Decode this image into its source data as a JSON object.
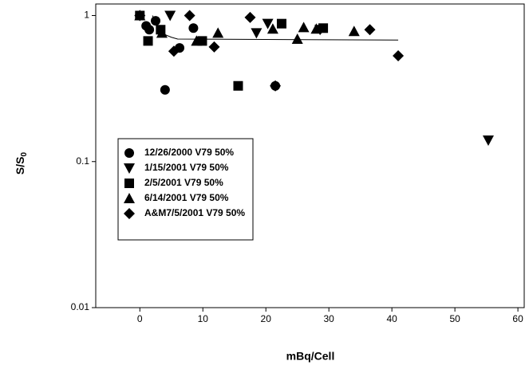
{
  "chart_data": {
    "type": "scatter",
    "x_label": "mBq/Cell",
    "y_label": "S/S",
    "y_label_subscript": "0",
    "xlim": [
      -7,
      61
    ],
    "xticks": [
      0,
      10,
      20,
      30,
      40,
      50,
      60
    ],
    "ylim": [
      0.01,
      1.2
    ],
    "yticks": [
      0.01,
      0.1,
      1
    ],
    "y_scale": "log",
    "grid": false,
    "legend_loc": "center left",
    "series": [
      {
        "name": "12/26/2000 V79 50%",
        "marker": "circle",
        "color": "#000000",
        "x": [
          0,
          1,
          1.5,
          2.5,
          4,
          6.3,
          8.5,
          21.5
        ],
        "values": [
          1.0,
          0.85,
          0.8,
          0.92,
          0.31,
          0.6,
          0.82,
          0.33
        ]
      },
      {
        "name": "1/15/2001 V79 50%",
        "marker": "triangle-down",
        "color": "#000000",
        "x": [
          4.8,
          18.5,
          20.3,
          28.6,
          55.3
        ],
        "values": [
          1.0,
          0.76,
          0.88,
          0.8,
          0.14
        ]
      },
      {
        "name": "2/5/2001 V79 50%",
        "marker": "square",
        "color": "#000000",
        "x": [
          0,
          1.3,
          3.3,
          9.9,
          15.6,
          22.5,
          29.1
        ],
        "values": [
          1.0,
          0.67,
          0.8,
          0.67,
          0.33,
          0.88,
          0.82
        ]
      },
      {
        "name": "6/14/2001 V79 50%",
        "marker": "triangle-up",
        "color": "#000000",
        "x": [
          0,
          3.5,
          9,
          12.4,
          21.1,
          25,
          26,
          28,
          34
        ],
        "values": [
          1.0,
          0.76,
          0.67,
          0.76,
          0.81,
          0.69,
          0.83,
          0.81,
          0.78
        ]
      },
      {
        "name": "A&M7/5/2001 V79 50%",
        "marker": "diamond",
        "color": "#000000",
        "x": [
          0,
          5.4,
          7.9,
          11.8,
          17.5,
          21.5,
          36.5,
          41
        ],
        "values": [
          1.0,
          0.57,
          1.0,
          0.61,
          0.97,
          0.33,
          0.8,
          0.53
        ]
      }
    ],
    "fit_line": {
      "color": "#000000",
      "x": [
        2,
        3,
        4,
        5,
        6,
        41
      ],
      "values": [
        1.0,
        0.82,
        0.74,
        0.71,
        0.69,
        0.68
      ]
    }
  }
}
